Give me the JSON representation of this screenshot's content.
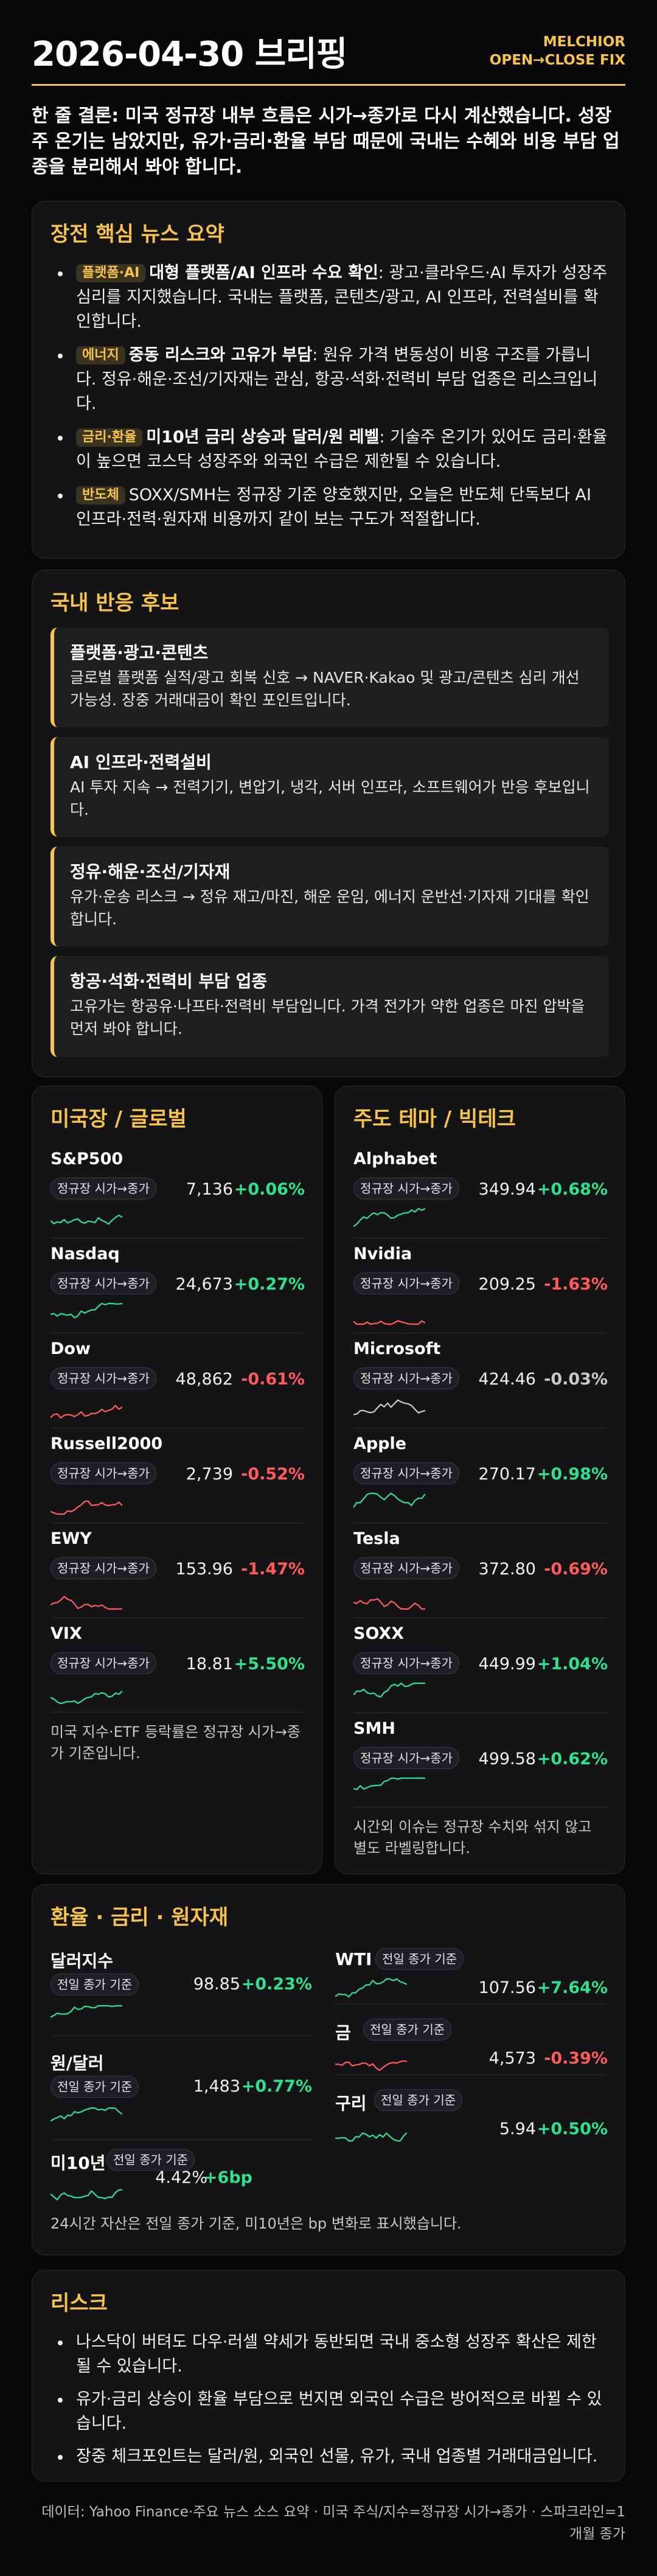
{
  "header": {
    "title": "2026-04-30 브리핑",
    "brand_line1": "MELCHIOR",
    "brand_line2": "OPEN→CLOSE FIX"
  },
  "lead": "한 줄 결론: 미국 정규장 내부 흐름은 시가→종가로 다시 계산했습니다. 성장주 온기는 남았지만, 유가·금리·환율 부담 때문에 국내는 수혜와 비용 부담 업종을 분리해서 봐야 합니다.",
  "news": {
    "title": "장전 핵심 뉴스 요약",
    "items": [
      {
        "tag": "플랫폼·AI",
        "headline": "대형 플랫폼/AI 인프라 수요 확인",
        "body": ": 광고·클라우드·AI 투자가 성장주 심리를 지지했습니다. 국내는 플랫폼, 콘텐츠/광고, AI 인프라, 전력설비를 확인합니다."
      },
      {
        "tag": "에너지",
        "headline": "중동 리스크와 고유가 부담",
        "body": ": 원유 가격 변동성이 비용 구조를 가릅니다. 정유·해운·조선/기자재는 관심, 항공·석화·전력비 부담 업종은 리스크입니다."
      },
      {
        "tag": "금리·환율",
        "headline": "미10년 금리 상승과 달러/원 레벨",
        "body": ": 기술주 온기가 있어도 금리·환율이 높으면 코스닥 성장주와 외국인 수급은 제한될 수 있습니다."
      },
      {
        "tag": "반도체",
        "headline": "",
        "body": "SOXX/SMH는 정규장 기준 양호했지만, 오늘은 반도체 단독보다 AI 인프라·전력·원자재 비용까지 같이 보는 구도가 적절합니다."
      }
    ]
  },
  "domestic": {
    "title": "국내 반응 후보",
    "items": [
      {
        "title": "플랫폼·광고·콘텐츠",
        "text": "글로벌 플랫폼 실적/광고 회복 신호 → NAVER·Kakao 및 광고/콘텐츠 심리 개선 가능성. 장중 거래대금이 확인 포인트입니다."
      },
      {
        "title": "AI 인프라·전력설비",
        "text": "AI 투자 지속 → 전력기기, 변압기, 냉각, 서버 인프라, 소프트웨어가 반응 후보입니다."
      },
      {
        "title": "정유·해운·조선/기자재",
        "text": "유가·운송 리스크 → 정유 재고/마진, 해운 운임, 에너지 운반선·기자재 기대를 확인합니다."
      },
      {
        "title": "항공·석화·전력비 부담 업종",
        "text": "고유가는 항공유·나프타·전력비 부담입니다. 가격 전가가 약한 업종은 마진 압박을 먼저 봐야 합니다."
      }
    ]
  },
  "us": {
    "title": "미국장 / 글로벌",
    "pill": "정규장 시가→종가",
    "rows": [
      {
        "name": "S&P500",
        "value": "7,136",
        "change": "+0.06%",
        "dir": "up"
      },
      {
        "name": "Nasdaq",
        "value": "24,673",
        "change": "+0.27%",
        "dir": "up"
      },
      {
        "name": "Dow",
        "value": "48,862",
        "change": "-0.61%",
        "dir": "down"
      },
      {
        "name": "Russell2000",
        "value": "2,739",
        "change": "-0.52%",
        "dir": "down"
      },
      {
        "name": "EWY",
        "value": "153.96",
        "change": "-1.47%",
        "dir": "down"
      },
      {
        "name": "VIX",
        "value": "18.81",
        "change": "+5.50%",
        "dir": "up"
      }
    ],
    "note": "미국 지수·ETF 등락률은 정규장 시가→종가 기준입니다."
  },
  "themes": {
    "title": "주도 테마 / 빅테크",
    "pill": "정규장 시가→종가",
    "rows": [
      {
        "name": "Alphabet",
        "value": "349.94",
        "change": "+0.68%",
        "dir": "up"
      },
      {
        "name": "Nvidia",
        "value": "209.25",
        "change": "-1.63%",
        "dir": "down"
      },
      {
        "name": "Microsoft",
        "value": "424.46",
        "change": "-0.03%",
        "dir": "flat"
      },
      {
        "name": "Apple",
        "value": "270.17",
        "change": "+0.98%",
        "dir": "up"
      },
      {
        "name": "Tesla",
        "value": "372.80",
        "change": "-0.69%",
        "dir": "down"
      },
      {
        "name": "SOXX",
        "value": "449.99",
        "change": "+1.04%",
        "dir": "up"
      },
      {
        "name": "SMH",
        "value": "499.58",
        "change": "+0.62%",
        "dir": "up"
      }
    ],
    "note": "시간외 이슈는 정규장 수치와 섞지 않고 별도 라벨링합니다."
  },
  "fx": {
    "title": "환율 · 금리 · 원자재",
    "pill": "전일 종가 기준",
    "left": [
      {
        "name": "달러지수",
        "value": "98.85",
        "change": "+0.23%",
        "dir": "up"
      },
      {
        "name": "원/달러",
        "value": "1,483",
        "change": "+0.77%",
        "dir": "up"
      },
      {
        "name": "미10년",
        "value": "4.42%",
        "change": "+6bp",
        "dir": "up"
      }
    ],
    "right": [
      {
        "name": "WTI",
        "value": "107.56",
        "change": "+7.64%",
        "dir": "up"
      },
      {
        "name": "금",
        "value": "4,573",
        "change": "-0.39%",
        "dir": "down"
      },
      {
        "name": "구리",
        "value": "5.94",
        "change": "+0.50%",
        "dir": "up"
      }
    ],
    "note": "24시간 자산은 전일 종가 기준, 미10년은 bp 변화로 표시했습니다."
  },
  "risk": {
    "title": "리스크",
    "items": [
      "나스닥이 버텨도 다우·러셀 약세가 동반되면 국내 중소형 성장주 확산은 제한될 수 있습니다.",
      "유가·금리 상승이 환율 부담으로 번지면 외국인 수급은 방어적으로 바뀔 수 있습니다.",
      "장중 체크포인트는 달러/원, 외국인 선물, 유가, 국내 업종별 거래대금입니다."
    ]
  },
  "footer": "데이터: Yahoo Finance·주요 뉴스 소스 요약 · 미국 주식/지수=정규장 시가→종가 · 스파크라인=1개월 종가",
  "colors": {
    "accent": "#f6c34c",
    "up": "#2fe08d",
    "down": "#ff5b5b",
    "flat": "#c9c9c9",
    "bg": "#08080a",
    "card": "#141417"
  }
}
